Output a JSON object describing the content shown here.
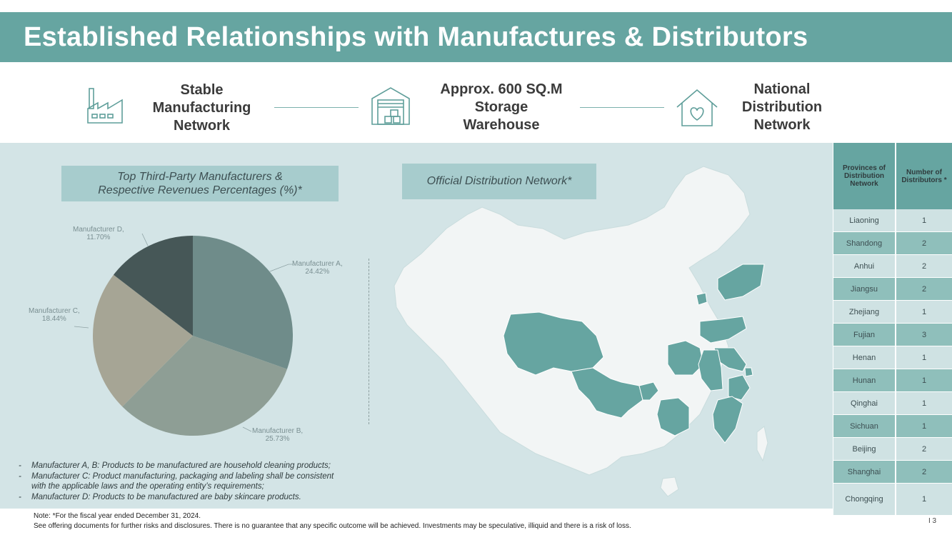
{
  "header": {
    "title": "Established Relationships with Manufactures & Distributors"
  },
  "features": [
    {
      "label_lines": [
        "Stable",
        "Manufacturing",
        "Network"
      ],
      "icon": "factory-icon"
    },
    {
      "label_lines": [
        "Approx. 600 SQ.M",
        "Storage",
        "Warehouse"
      ],
      "icon": "warehouse-icon"
    },
    {
      "label_lines": [
        "National",
        "Distribution",
        "Network"
      ],
      "icon": "house-heart-icon"
    }
  ],
  "pie_section": {
    "title_lines": [
      "Top Third-Party Manufacturers &",
      "Respective Revenues Percentages (%)*"
    ],
    "labels": [
      {
        "name": "Manufacturer A,",
        "value": "24.42%"
      },
      {
        "name": "Manufacturer B,",
        "value": "25.73%"
      },
      {
        "name": "Manufacturer C,",
        "value": "18.44%"
      },
      {
        "name": "Manufacturer D,",
        "value": "11.70%"
      }
    ]
  },
  "chart_data": {
    "type": "pie",
    "title": "Top Third-Party Manufacturers & Respective Revenues Percentages (%)*",
    "categories": [
      "Manufacturer A",
      "Manufacturer B",
      "Manufacturer C",
      "Manufacturer D"
    ],
    "values": [
      24.42,
      25.73,
      18.44,
      11.7
    ],
    "colors": [
      "#6f8c8a",
      "#8e9e95",
      "#a6a595",
      "#465757"
    ]
  },
  "map_section": {
    "title": "Official Distribution Network*"
  },
  "notes": [
    "Manufacturer A, B: Products to be manufactured are household cleaning products;",
    "Manufacturer C: Product manufacturing, packaging and labeling shall be consistent",
    "with the applicable laws and the operating entity’s requirements;",
    "Manufacturer D: Products to be manufactured are baby skincare products."
  ],
  "distribution_table": {
    "headers": [
      "Provinces of Distribution Network",
      "Number of Distributors *"
    ],
    "rows": [
      [
        "Liaoning",
        "1"
      ],
      [
        "Shandong",
        "2"
      ],
      [
        "Anhui",
        "2"
      ],
      [
        "Jiangsu",
        "2"
      ],
      [
        "Zhejiang",
        "1"
      ],
      [
        "Fujian",
        "3"
      ],
      [
        "Henan",
        "1"
      ],
      [
        "Hunan",
        "1"
      ],
      [
        "Qinghai",
        "1"
      ],
      [
        "Sichuan",
        "1"
      ],
      [
        "Beijing",
        "2"
      ],
      [
        "Shanghai",
        "2"
      ],
      [
        "Chongqing",
        "1"
      ]
    ]
  },
  "footer": {
    "note": "Note: *For the fiscal year ended December 31, 2024.",
    "disclaimer": "See offering documents for further risks and disclosures. There is no guarantee that any specific outcome will be achieved. Investments may be speculative, illiquid and there is a risk of loss.",
    "page": "I 3"
  },
  "colors": {
    "brand": "#66a5a1",
    "panel": "#d3e4e6",
    "highlight": "#66a5a1"
  }
}
